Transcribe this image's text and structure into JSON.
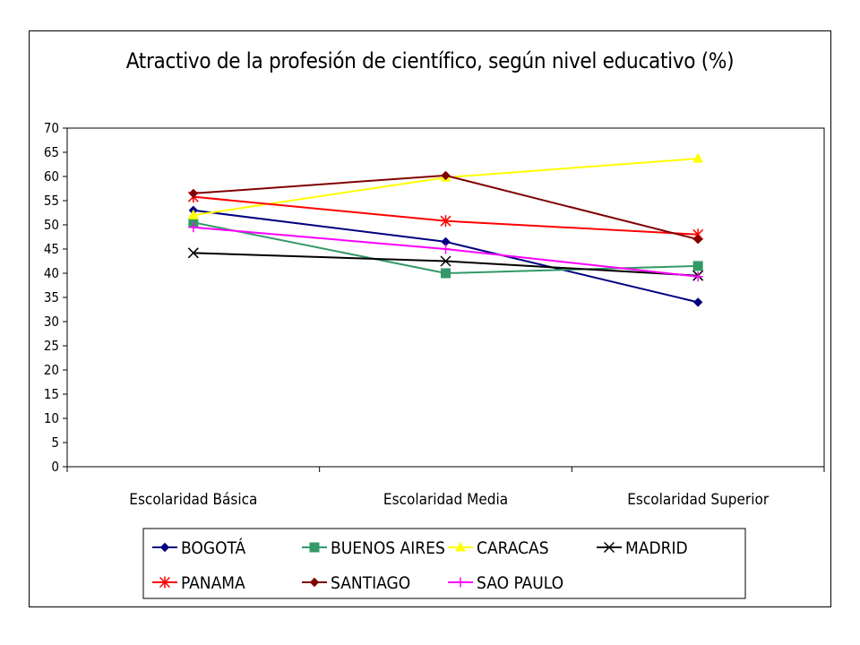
{
  "chart_data": {
    "type": "line",
    "title": "Atractivo de la profesión de científico, según nivel educativo (%)",
    "xlabel": "",
    "ylabel": "",
    "categories": [
      "Escolaridad Básica",
      "Escolaridad Media",
      "Escolaridad Superior"
    ],
    "ylim": [
      0,
      70
    ],
    "ytick_step": 5,
    "grid": false,
    "legend_placement": "bottom",
    "series": [
      {
        "name": "BOGOTÁ",
        "values": [
          53.0,
          46.5,
          34.0
        ],
        "color": "#000080",
        "marker": "diamond"
      },
      {
        "name": "BUENOS AIRES",
        "values": [
          50.5,
          40.0,
          41.5
        ],
        "color": "#339966",
        "marker": "square"
      },
      {
        "name": "CARACAS",
        "values": [
          52.0,
          59.8,
          63.7
        ],
        "color": "#FFFF00",
        "marker": "triangle"
      },
      {
        "name": "MADRID",
        "values": [
          44.2,
          42.5,
          39.5
        ],
        "color": "#000000",
        "marker": "x"
      },
      {
        "name": "PANAMA",
        "values": [
          55.8,
          50.8,
          48.0
        ],
        "color": "#FF0000",
        "marker": "star"
      },
      {
        "name": "SANTIAGO",
        "values": [
          56.5,
          60.2,
          47.0
        ],
        "color": "#800000",
        "marker": "diamond"
      },
      {
        "name": "SAO PAULO",
        "values": [
          49.5,
          45.0,
          39.3
        ],
        "color": "#FF00FF",
        "marker": "plus"
      }
    ]
  }
}
